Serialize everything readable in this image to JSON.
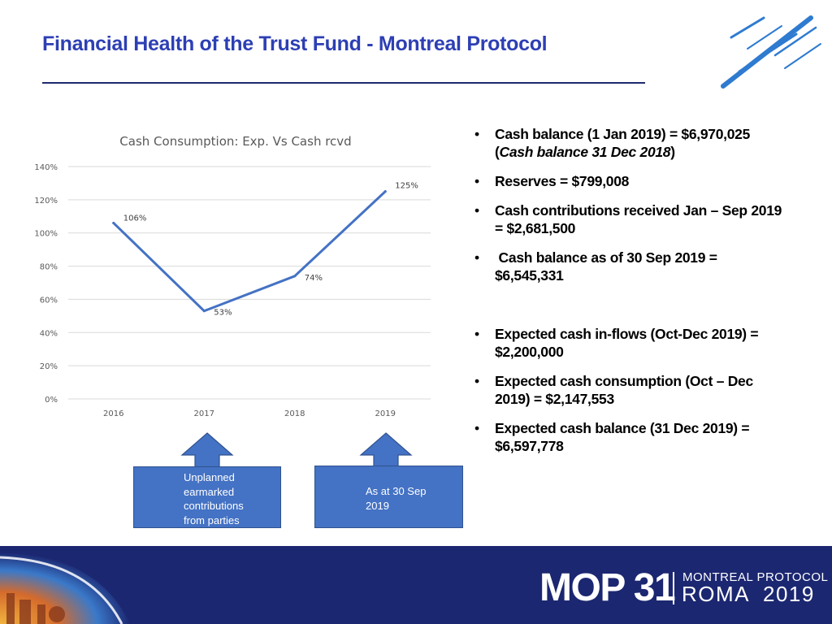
{
  "header": {
    "title": "Financial Health of the Trust Fund - Montreal Protocol"
  },
  "chart_data": {
    "type": "line",
    "title": "Cash Consumption: Exp. Vs Cash rcvd",
    "categories": [
      "2016",
      "2017",
      "2018",
      "2019"
    ],
    "values": [
      106,
      53,
      74,
      125
    ],
    "data_labels": [
      "106%",
      "53%",
      "74%",
      "125%"
    ],
    "ylim": [
      0,
      140
    ],
    "yticks": [
      "0%",
      "20%",
      "40%",
      "60%",
      "80%",
      "100%",
      "120%",
      "140%"
    ],
    "grid": true,
    "legend": "none",
    "line_color": "#4472c4"
  },
  "callouts": [
    {
      "lines": [
        "Unplanned",
        "earmarked",
        "contributions",
        "from parties"
      ]
    },
    {
      "lines": [
        "As at 30 Sep",
        "2019"
      ]
    }
  ],
  "bullets": {
    "marker": "•",
    "b1_line1": "Cash balance (1 Jan 2019) = $6,970,025",
    "b1_line2_open": "(",
    "b1_line2_italic": "Cash balance 31 Dec 2018",
    "b1_line2_close": ")",
    "b2": "Reserves = $799,008",
    "b3_line1": "Cash contributions received Jan – Sep 2019",
    "b3_line2": "= $2,681,500",
    "b4_line1": " Cash balance as of 30 Sep 2019 =",
    "b4_line2": "$6,545,331",
    "b5_line1": "Expected cash in-flows (Oct-Dec 2019) =",
    "b5_line2": "$2,200,000",
    "b6_line1": "Expected cash consumption (Oct – Dec",
    "b6_line2": "2019) = $2,147,553",
    "b7_line1": "Expected cash balance (31 Dec 2019) =",
    "b7_line2": "$6,597,778"
  },
  "footer": {
    "brand": "MOP 31",
    "line1": "MONTREAL PROTOCOL",
    "line2": "ROMA  2019"
  },
  "colors": {
    "title": "#2d3fb4",
    "footer_bg": "#1c2771",
    "accent_blue": "#4472c4"
  }
}
